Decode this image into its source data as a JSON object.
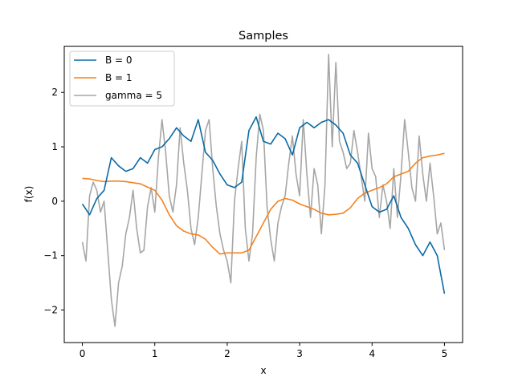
{
  "chart_data": {
    "type": "line",
    "title": "Samples",
    "xlabel": "x",
    "ylabel": "f(x)",
    "xlim": [
      -0.25,
      5.25
    ],
    "ylim": [
      -2.6,
      2.85
    ],
    "xticks": [
      0,
      1,
      2,
      3,
      4,
      5
    ],
    "yticks": [
      -2,
      -1,
      0,
      1,
      2
    ],
    "grid": false,
    "legend_position": "top-left",
    "series": [
      {
        "name": "B = 0",
        "color": "#0a6aa6",
        "x": [
          0,
          0.1,
          0.2,
          0.3,
          0.4,
          0.5,
          0.6,
          0.7,
          0.8,
          0.9,
          1.0,
          1.1,
          1.2,
          1.3,
          1.4,
          1.5,
          1.6,
          1.7,
          1.8,
          1.9,
          2.0,
          2.1,
          2.2,
          2.3,
          2.4,
          2.5,
          2.6,
          2.7,
          2.8,
          2.9,
          3.0,
          3.1,
          3.2,
          3.3,
          3.4,
          3.5,
          3.6,
          3.7,
          3.8,
          3.9,
          4.0,
          4.1,
          4.2,
          4.3,
          4.4,
          4.5,
          4.6,
          4.7,
          4.8,
          4.9,
          5.0
        ],
        "values": [
          -0.05,
          -0.25,
          0.05,
          0.2,
          0.8,
          0.65,
          0.55,
          0.6,
          0.8,
          0.7,
          0.95,
          1.0,
          1.15,
          1.35,
          1.2,
          1.1,
          1.5,
          0.9,
          0.75,
          0.5,
          0.3,
          0.25,
          0.35,
          1.3,
          1.55,
          1.1,
          1.05,
          1.25,
          1.15,
          0.85,
          1.35,
          1.45,
          1.35,
          1.45,
          1.5,
          1.4,
          1.25,
          0.85,
          0.7,
          0.3,
          -0.1,
          -0.2,
          -0.15,
          0.1,
          -0.3,
          -0.5,
          -0.8,
          -1.0,
          -0.75,
          -1.0,
          -1.7
        ]
      },
      {
        "name": "B = 1",
        "color": "#f5821f",
        "x": [
          0,
          0.1,
          0.2,
          0.3,
          0.4,
          0.5,
          0.6,
          0.7,
          0.8,
          0.9,
          1.0,
          1.1,
          1.2,
          1.3,
          1.4,
          1.5,
          1.6,
          1.7,
          1.8,
          1.9,
          2.0,
          2.1,
          2.2,
          2.3,
          2.4,
          2.5,
          2.6,
          2.7,
          2.8,
          2.9,
          3.0,
          3.1,
          3.2,
          3.3,
          3.4,
          3.5,
          3.6,
          3.7,
          3.8,
          3.9,
          4.0,
          4.1,
          4.2,
          4.3,
          4.4,
          4.5,
          4.6,
          4.7,
          4.8,
          4.9,
          5.0
        ],
        "values": [
          0.42,
          0.41,
          0.38,
          0.36,
          0.37,
          0.37,
          0.36,
          0.34,
          0.32,
          0.26,
          0.2,
          0.02,
          -0.25,
          -0.45,
          -0.55,
          -0.6,
          -0.62,
          -0.7,
          -0.85,
          -0.97,
          -0.95,
          -0.95,
          -0.95,
          -0.9,
          -0.65,
          -0.4,
          -0.15,
          0.0,
          0.05,
          0.02,
          -0.05,
          -0.1,
          -0.15,
          -0.22,
          -0.25,
          -0.24,
          -0.22,
          -0.12,
          0.05,
          0.15,
          0.2,
          0.25,
          0.32,
          0.45,
          0.5,
          0.55,
          0.7,
          0.8,
          0.83,
          0.85,
          0.88
        ]
      },
      {
        "name": "gamma = 5",
        "color": "#a6a6a6",
        "x": [
          0,
          0.05,
          0.1,
          0.15,
          0.2,
          0.25,
          0.3,
          0.35,
          0.4,
          0.45,
          0.5,
          0.55,
          0.6,
          0.65,
          0.7,
          0.75,
          0.8,
          0.85,
          0.9,
          0.95,
          1.0,
          1.05,
          1.1,
          1.15,
          1.2,
          1.25,
          1.3,
          1.35,
          1.4,
          1.45,
          1.5,
          1.55,
          1.6,
          1.65,
          1.7,
          1.75,
          1.8,
          1.85,
          1.9,
          1.95,
          2.0,
          2.05,
          2.1,
          2.15,
          2.2,
          2.25,
          2.3,
          2.35,
          2.4,
          2.45,
          2.5,
          2.55,
          2.6,
          2.65,
          2.7,
          2.75,
          2.8,
          2.85,
          2.9,
          2.95,
          3.0,
          3.05,
          3.1,
          3.15,
          3.2,
          3.25,
          3.3,
          3.35,
          3.4,
          3.45,
          3.5,
          3.55,
          3.6,
          3.65,
          3.7,
          3.75,
          3.8,
          3.85,
          3.9,
          3.95,
          4.0,
          4.05,
          4.1,
          4.15,
          4.2,
          4.25,
          4.3,
          4.35,
          4.4,
          4.45,
          4.5,
          4.55,
          4.6,
          4.65,
          4.7,
          4.75,
          4.8,
          4.85,
          4.9,
          4.95,
          5.0
        ],
        "values": [
          -0.75,
          -1.1,
          0.1,
          0.35,
          0.2,
          -0.2,
          0.0,
          -0.9,
          -1.8,
          -2.3,
          -1.5,
          -1.2,
          -0.6,
          -0.3,
          0.2,
          -0.5,
          -0.95,
          -0.9,
          -0.1,
          0.25,
          -0.2,
          0.8,
          1.5,
          0.9,
          0.1,
          -0.2,
          0.3,
          1.35,
          0.7,
          0.2,
          -0.5,
          -0.8,
          -0.3,
          0.5,
          1.3,
          1.5,
          0.6,
          -0.1,
          -0.6,
          -0.9,
          -1.1,
          -1.5,
          0.0,
          0.6,
          1.1,
          -0.5,
          -1.1,
          -0.6,
          0.8,
          1.6,
          1.3,
          -0.1,
          -0.7,
          -1.1,
          -0.4,
          -0.1,
          0.1,
          0.7,
          1.2,
          0.5,
          0.1,
          1.5,
          0.5,
          -0.3,
          0.6,
          0.3,
          -0.6,
          0.3,
          2.7,
          1.0,
          2.55,
          1.1,
          0.9,
          0.6,
          0.7,
          1.3,
          0.9,
          0.45,
          0.0,
          1.25,
          0.6,
          0.45,
          -0.3,
          0.3,
          0.0,
          -0.5,
          0.6,
          -0.3,
          0.5,
          1.5,
          0.9,
          0.25,
          0.0,
          1.2,
          0.5,
          0.0,
          0.7,
          0.1,
          -0.6,
          -0.4,
          -0.9
        ]
      }
    ]
  }
}
